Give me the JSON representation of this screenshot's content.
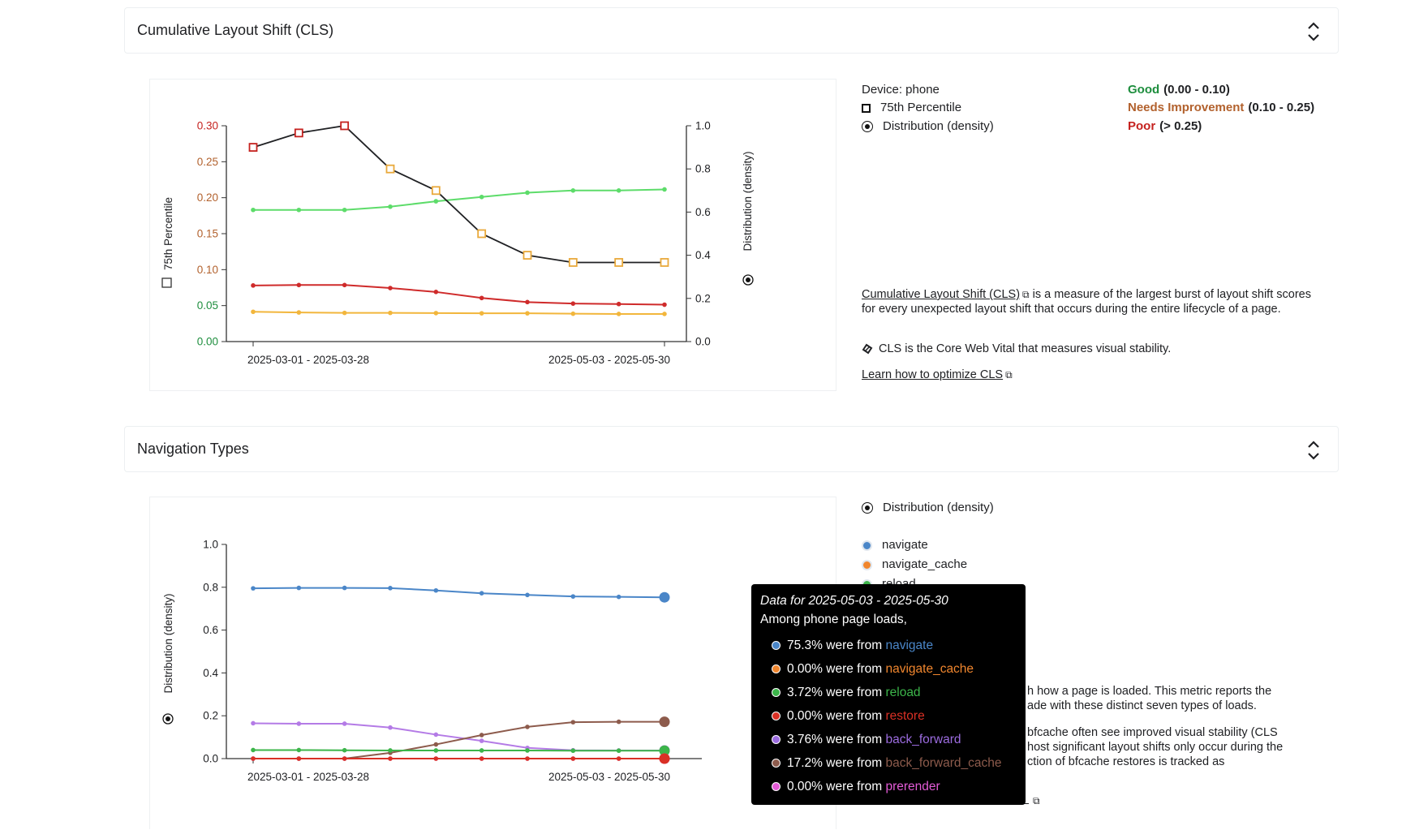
{
  "cls_section": {
    "title": "Cumulative Layout Shift (CLS)",
    "device": "Device: phone",
    "legend_p75": "75th Percentile",
    "legend_dist": "Distribution (density)",
    "thresholds": {
      "good_label": "Good",
      "good_range": "(0.00 - 0.10)",
      "ni_label": "Needs Improvement",
      "ni_range": "(0.10 - 0.25)",
      "poor_label": "Poor",
      "poor_range": "(> 0.25)"
    },
    "description_link": "Cumulative Layout Shift (CLS)",
    "description_rest": " is a measure of the largest burst of layout shift scores for every unexpected layout shift that occurs during the entire lifecycle of a page.",
    "core_vital_note": "CLS is the Core Web Vital that measures visual stability.",
    "learn_link": "Learn how to optimize CLS"
  },
  "nav_section": {
    "title": "Navigation Types",
    "legend_dist": "Distribution (density)",
    "legend_items": [
      {
        "label": "navigate",
        "color": "#4a86c8"
      },
      {
        "label": "navigate_cache",
        "color": "#f0862e"
      },
      {
        "label": "reload",
        "color": "#3cb54a"
      }
    ],
    "partial_text": [
      "h how a page is loaded. This metric reports the",
      "ade with these distinct seven types of loads.",
      "bfcache often see improved visual stability (CLS",
      "host significant layout shifts only occur during the",
      "ction of bfcache restores is tracked as"
    ]
  },
  "tooltip": {
    "title": "Data for 2025-05-03 - 2025-05-30",
    "subtitle": "Among phone page loads,",
    "rows": [
      {
        "pct": "75.3% were from ",
        "type": "navigate",
        "color": "#4a86c8"
      },
      {
        "pct": "0.00% were from ",
        "type": "navigate_cache",
        "color": "#f0862e"
      },
      {
        "pct": "3.72% were from ",
        "type": "reload",
        "color": "#3cb54a"
      },
      {
        "pct": "0.00% were from ",
        "type": "restore",
        "color": "#d93025"
      },
      {
        "pct": "3.76% were from ",
        "type": "back_forward",
        "color": "#9c6ce0"
      },
      {
        "pct": "17.2% were from ",
        "type": "back_forward_cache",
        "color": "#8d5b4c"
      },
      {
        "pct": "0.00% were from ",
        "type": "prerender",
        "color": "#e35bd6"
      }
    ]
  },
  "chart_data": [
    {
      "type": "line",
      "x": [
        "2025-03-01 - 2025-03-28",
        "",
        "",
        "",
        "",
        "",
        "",
        "",
        "",
        "2025-05-03 - 2025-05-30"
      ],
      "xtick_labels": [
        "2025-03-01 - 2025-03-28",
        "2025-05-03 - 2025-05-30"
      ],
      "ylabel": "75th Percentile",
      "y2label": "Distribution (density)",
      "ylim": [
        0,
        0.3
      ],
      "y2lim": [
        0,
        1.0
      ],
      "yticks": [
        "0.00",
        "0.05",
        "0.10",
        "0.15",
        "0.20",
        "0.25",
        "0.30"
      ],
      "y2ticks": [
        "0.0",
        "0.2",
        "0.4",
        "0.6",
        "0.8",
        "1.0"
      ],
      "p75": [
        0.27,
        0.29,
        0.3,
        0.24,
        0.21,
        0.15,
        0.12,
        0.11,
        0.11,
        0.11
      ],
      "series": [
        {
          "color": "#5ddc6a",
          "axis": "right",
          "values": [
            0.61,
            0.61,
            0.61,
            0.625,
            0.65,
            0.67,
            0.69,
            0.7,
            0.7,
            0.705
          ]
        },
        {
          "color": "#cf2b2b",
          "axis": "right",
          "values": [
            0.26,
            0.262,
            0.262,
            0.248,
            0.23,
            0.202,
            0.183,
            0.176,
            0.174,
            0.171
          ]
        },
        {
          "color": "#f2b63c",
          "axis": "right",
          "values": [
            0.138,
            0.135,
            0.133,
            0.133,
            0.132,
            0.131,
            0.131,
            0.129,
            0.128,
            0.128
          ]
        }
      ],
      "grid": false
    },
    {
      "type": "line",
      "x": [
        "2025-03-01 - 2025-03-28",
        "",
        "",
        "",
        "",
        "",
        "",
        "",
        "",
        "2025-05-03 - 2025-05-30"
      ],
      "xtick_labels": [
        "2025-03-01 - 2025-03-28",
        "2025-05-03 - 2025-05-30"
      ],
      "ylabel": "Distribution (density)",
      "ylim": [
        0,
        1.0
      ],
      "yticks": [
        "0.0",
        "0.2",
        "0.4",
        "0.6",
        "0.8",
        "1.0"
      ],
      "series": [
        {
          "name": "navigate",
          "color": "#4a86c8",
          "values": [
            0.795,
            0.797,
            0.797,
            0.796,
            0.785,
            0.772,
            0.764,
            0.757,
            0.755,
            0.753
          ]
        },
        {
          "name": "back_forward",
          "color": "#b47be6",
          "values": [
            0.165,
            0.163,
            0.163,
            0.145,
            0.112,
            0.083,
            0.05,
            0.039,
            0.038,
            0.038
          ]
        },
        {
          "name": "back_forward_cache",
          "color": "#8d5b4c",
          "values": [
            0.0,
            0.0,
            0.0,
            0.027,
            0.066,
            0.11,
            0.148,
            0.17,
            0.172,
            0.172
          ]
        },
        {
          "name": "reload",
          "color": "#3cb54a",
          "values": [
            0.04,
            0.04,
            0.039,
            0.038,
            0.038,
            0.038,
            0.038,
            0.037,
            0.037,
            0.037
          ]
        },
        {
          "name": "prerender",
          "color": "#e35bd6",
          "values": [
            0.0,
            0.0,
            0.0,
            0.0,
            0.0,
            0.0,
            0.0,
            0.0,
            0.0,
            0.0
          ]
        },
        {
          "name": "restore",
          "color": "#d93025",
          "values": [
            0.0,
            0.0,
            0.0,
            0.0,
            0.0,
            0.0,
            0.0,
            0.0,
            0.0,
            0.0
          ]
        }
      ],
      "grid": false
    }
  ]
}
